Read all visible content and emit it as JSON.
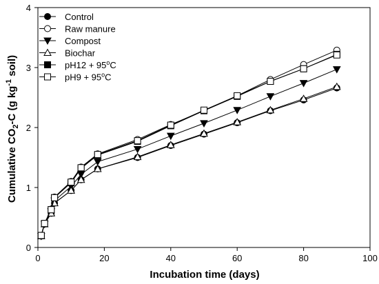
{
  "chart_data": {
    "type": "line",
    "xlabel": "Incubation time (days)",
    "ylabel": {
      "pre": "Cumulative CO",
      "sub": "2",
      "mid": "-C (g kg",
      "sup": "-1",
      "post": " soil)"
    },
    "xlim": [
      0,
      100
    ],
    "ylim": [
      0,
      4
    ],
    "xticks": [
      0,
      20,
      40,
      60,
      80,
      100
    ],
    "yticks": [
      0,
      1,
      2,
      3,
      4
    ],
    "grid": false,
    "legend_position": "top-left",
    "x": [
      1,
      2,
      4,
      5,
      10,
      13,
      18,
      30,
      40,
      50,
      60,
      70,
      80,
      90
    ],
    "series": [
      {
        "name": "Control",
        "marker": "filled-circle",
        "values": [
          0.19,
          0.39,
          0.57,
          0.74,
          0.95,
          1.13,
          1.31,
          1.5,
          1.7,
          1.89,
          2.08,
          2.28,
          2.46,
          2.66
        ]
      },
      {
        "name": "Raw manure",
        "marker": "open-circle",
        "values": [
          0.2,
          0.4,
          0.64,
          0.84,
          1.1,
          1.34,
          1.56,
          1.8,
          2.05,
          2.28,
          2.53,
          2.8,
          3.05,
          3.29
        ]
      },
      {
        "name": "Compost",
        "marker": "filled-triangle-down",
        "values": [
          0.19,
          0.39,
          0.6,
          0.78,
          1.02,
          1.22,
          1.43,
          1.64,
          1.86,
          2.07,
          2.29,
          2.52,
          2.74,
          2.97
        ]
      },
      {
        "name": "Biochar",
        "marker": "open-triangle-up",
        "values": [
          0.19,
          0.39,
          0.57,
          0.74,
          0.95,
          1.13,
          1.31,
          1.51,
          1.71,
          1.9,
          2.09,
          2.29,
          2.48,
          2.68
        ]
      },
      {
        "name": "pH12 + 95",
        "name_sup": "o",
        "name_suffix": "C",
        "marker": "filled-square",
        "values": [
          0.2,
          0.4,
          0.63,
          0.83,
          1.08,
          1.32,
          1.54,
          1.77,
          2.03,
          2.28,
          2.52,
          2.77,
          2.98,
          3.22
        ]
      },
      {
        "name": "pH9 + 95",
        "name_sup": "o",
        "name_suffix": "C",
        "marker": "open-square",
        "values": [
          0.2,
          0.4,
          0.63,
          0.83,
          1.09,
          1.33,
          1.55,
          1.78,
          2.04,
          2.29,
          2.53,
          2.77,
          2.98,
          3.21
        ]
      }
    ]
  }
}
